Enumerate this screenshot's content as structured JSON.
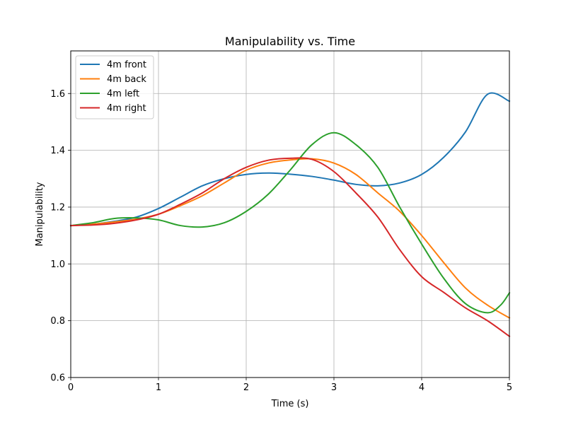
{
  "figure": {
    "title": "Manipulability vs. Time",
    "xlabel": "Time (s)",
    "ylabel": "Manipulability"
  },
  "chart_data": {
    "type": "line",
    "title": "Manipulability vs. Time",
    "xlabel": "Time (s)",
    "ylabel": "Manipulability",
    "xlim": [
      0,
      5
    ],
    "ylim": [
      0.6,
      1.75
    ],
    "xticks": [
      0,
      1,
      2,
      3,
      4,
      5
    ],
    "xtick_labels": [
      "0",
      "1",
      "2",
      "3",
      "4",
      "5"
    ],
    "yticks": [
      0.6,
      0.8,
      1.0,
      1.2,
      1.4,
      1.6
    ],
    "ytick_labels": [
      "0.6",
      "0.8",
      "1.0",
      "1.2",
      "1.4",
      "1.6"
    ],
    "grid": true,
    "legend_position": "top-left",
    "series": [
      {
        "name": "4m front",
        "color": "#1f77b4",
        "x": [
          0,
          0.25,
          0.5,
          0.75,
          1.0,
          1.25,
          1.5,
          1.75,
          2.0,
          2.25,
          2.5,
          2.75,
          3.0,
          3.25,
          3.5,
          3.75,
          4.0,
          4.25,
          4.5,
          4.75,
          5.0
        ],
        "y": [
          1.135,
          1.14,
          1.15,
          1.165,
          1.195,
          1.235,
          1.275,
          1.3,
          1.315,
          1.32,
          1.316,
          1.308,
          1.295,
          1.28,
          1.275,
          1.285,
          1.315,
          1.375,
          1.465,
          1.597,
          1.573
        ]
      },
      {
        "name": "4m back",
        "color": "#ff7f0e",
        "x": [
          0,
          0.25,
          0.5,
          0.75,
          1.0,
          1.25,
          1.5,
          1.75,
          2.0,
          2.25,
          2.5,
          2.75,
          3.0,
          3.25,
          3.5,
          3.75,
          4.0,
          4.25,
          4.5,
          4.75,
          5.0
        ],
        "y": [
          1.135,
          1.14,
          1.148,
          1.158,
          1.175,
          1.205,
          1.24,
          1.285,
          1.33,
          1.355,
          1.366,
          1.37,
          1.355,
          1.315,
          1.25,
          1.185,
          1.1,
          1.005,
          0.915,
          0.855,
          0.81
        ]
      },
      {
        "name": "4m left",
        "color": "#2ca02c",
        "x": [
          0,
          0.25,
          0.5,
          0.75,
          1.0,
          1.25,
          1.5,
          1.75,
          2.0,
          2.25,
          2.5,
          2.75,
          3.0,
          3.25,
          3.5,
          3.75,
          4.0,
          4.25,
          4.5,
          4.75,
          4.9,
          5.0
        ],
        "y": [
          1.135,
          1.145,
          1.16,
          1.162,
          1.155,
          1.135,
          1.13,
          1.145,
          1.185,
          1.245,
          1.33,
          1.42,
          1.462,
          1.42,
          1.34,
          1.2,
          1.07,
          0.95,
          0.86,
          0.828,
          0.855,
          0.898
        ]
      },
      {
        "name": "4m right",
        "color": "#d62728",
        "x": [
          0,
          0.25,
          0.5,
          0.75,
          1.0,
          1.25,
          1.5,
          1.75,
          2.0,
          2.25,
          2.5,
          2.75,
          3.0,
          3.25,
          3.5,
          3.75,
          4.0,
          4.25,
          4.5,
          4.75,
          5.0
        ],
        "y": [
          1.135,
          1.137,
          1.143,
          1.155,
          1.175,
          1.21,
          1.25,
          1.3,
          1.34,
          1.365,
          1.372,
          1.368,
          1.325,
          1.25,
          1.165,
          1.05,
          0.955,
          0.9,
          0.845,
          0.8,
          0.745
        ]
      }
    ]
  }
}
